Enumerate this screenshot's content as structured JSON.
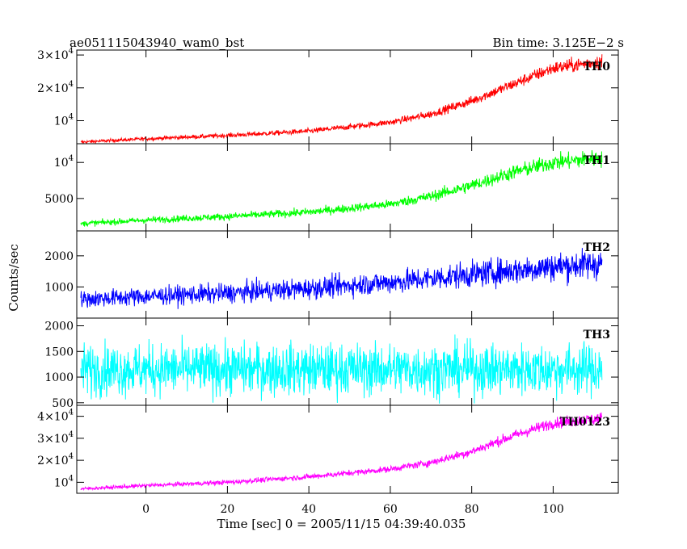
{
  "header": {
    "obs_id": "ae051115043940_wam0_bst",
    "bin_time": "Bin time: 3.125E−2 s"
  },
  "chart_data": {
    "type": "line",
    "ylabel": "Counts/sec",
    "xlabel": "Time [sec] 0 = 2005/11/15 04:39:40.035",
    "xlim": [
      -17,
      116
    ],
    "x_ticks": [
      0,
      20,
      40,
      60,
      80,
      100
    ],
    "x_start": -16,
    "x_end": 112,
    "panels": [
      {
        "name": "TH0",
        "color": "#ff0000",
        "ylim": [
          3000,
          31500
        ],
        "ticks": [
          {
            "v": 10000,
            "m": "10",
            "e": "4"
          },
          {
            "v": 20000,
            "m": "2×10",
            "e": "4"
          },
          {
            "v": 30000,
            "m": "3×10",
            "e": "4"
          }
        ],
        "trend": [
          [
            -16,
            3500
          ],
          [
            0,
            4500
          ],
          [
            20,
            5500
          ],
          [
            40,
            6800
          ],
          [
            60,
            9500
          ],
          [
            70,
            12000
          ],
          [
            80,
            16000
          ],
          [
            90,
            21000
          ],
          [
            100,
            26000
          ],
          [
            112,
            28000
          ]
        ],
        "noise": [
          [
            -16,
            600
          ],
          [
            60,
            1200
          ],
          [
            90,
            2200
          ],
          [
            112,
            3000
          ]
        ]
      },
      {
        "name": "TH1",
        "color": "#00ff00",
        "ylim": [
          500,
          12600
        ],
        "ticks": [
          {
            "v": 5000,
            "m": "5000",
            "e": ""
          },
          {
            "v": 10000,
            "m": "10",
            "e": "4"
          }
        ],
        "trend": [
          [
            -16,
            1500
          ],
          [
            0,
            2000
          ],
          [
            20,
            2500
          ],
          [
            40,
            3100
          ],
          [
            60,
            4200
          ],
          [
            70,
            5300
          ],
          [
            80,
            6800
          ],
          [
            90,
            8600
          ],
          [
            100,
            10000
          ],
          [
            112,
            10600
          ]
        ],
        "noise": [
          [
            -16,
            500
          ],
          [
            60,
            800
          ],
          [
            90,
            1300
          ],
          [
            112,
            1600
          ]
        ]
      },
      {
        "name": "TH2",
        "color": "#0000ff",
        "ylim": [
          0,
          2800
        ],
        "ticks": [
          {
            "v": 1000,
            "m": "1000",
            "e": ""
          },
          {
            "v": 2000,
            "m": "2000",
            "e": ""
          }
        ],
        "trend": [
          [
            -16,
            600
          ],
          [
            0,
            700
          ],
          [
            20,
            800
          ],
          [
            40,
            950
          ],
          [
            60,
            1150
          ],
          [
            80,
            1400
          ],
          [
            100,
            1650
          ],
          [
            112,
            1750
          ]
        ],
        "noise": [
          [
            -16,
            350
          ],
          [
            50,
            450
          ],
          [
            100,
            600
          ],
          [
            112,
            650
          ]
        ]
      },
      {
        "name": "TH3",
        "color": "#00ffff",
        "ylim": [
          450,
          2150
        ],
        "ticks": [
          {
            "v": 500,
            "m": "500",
            "e": ""
          },
          {
            "v": 1000,
            "m": "1000",
            "e": ""
          },
          {
            "v": 1500,
            "m": "1500",
            "e": ""
          },
          {
            "v": 2000,
            "m": "2000",
            "e": ""
          }
        ],
        "trend": [
          [
            -16,
            1150
          ],
          [
            112,
            1150
          ]
        ],
        "noise": [
          [
            -16,
            650
          ],
          [
            112,
            650
          ]
        ]
      },
      {
        "name": "TH0123",
        "color": "#ff00ff",
        "ylim": [
          5000,
          45000
        ],
        "ticks": [
          {
            "v": 10000,
            "m": "10",
            "e": "4"
          },
          {
            "v": 20000,
            "m": "2×10",
            "e": "4"
          },
          {
            "v": 30000,
            "m": "3×10",
            "e": "4"
          },
          {
            "v": 40000,
            "m": "4×10",
            "e": "4"
          }
        ],
        "trend": [
          [
            -16,
            7000
          ],
          [
            0,
            8500
          ],
          [
            20,
            10000
          ],
          [
            40,
            12500
          ],
          [
            60,
            16000
          ],
          [
            70,
            19000
          ],
          [
            80,
            24000
          ],
          [
            90,
            31000
          ],
          [
            100,
            37000
          ],
          [
            112,
            39000
          ]
        ],
        "noise": [
          [
            -16,
            1000
          ],
          [
            60,
            1800
          ],
          [
            90,
            3000
          ],
          [
            112,
            3800
          ]
        ]
      }
    ]
  }
}
